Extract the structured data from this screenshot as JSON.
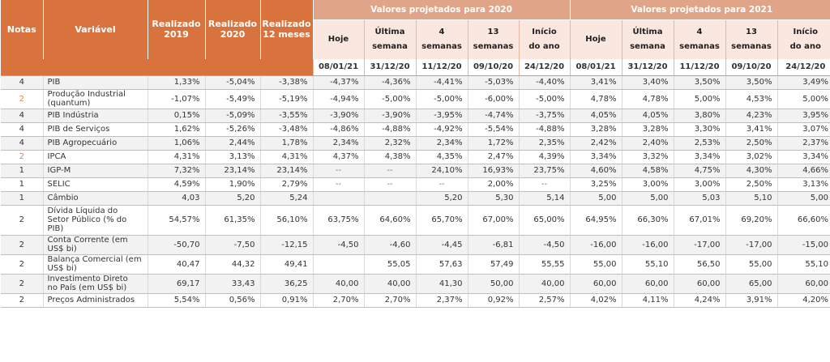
{
  "header": {
    "notas": "Notas",
    "variavel": "Variável",
    "realizado_2019": [
      "Realizado",
      "2019"
    ],
    "realizado_2020": [
      "Realizado",
      "2020"
    ],
    "realizado_12m": [
      "Realizado",
      "12 meses"
    ],
    "proj_2020": "Valores projetados para 2020",
    "proj_2021": "Valores projetados para 2021",
    "sub": [
      [
        "Hoje"
      ],
      [
        "Última",
        "semana"
      ],
      [
        "4",
        "semanas"
      ],
      [
        "13",
        "semanas"
      ],
      [
        "Início",
        "do ano"
      ]
    ],
    "dates_2020": [
      "08/01/21",
      "31/12/20",
      "11/12/20",
      "09/10/20",
      "24/12/20"
    ],
    "dates_2021": [
      "08/01/21",
      "31/12/20",
      "11/12/20",
      "09/10/20",
      "24/12/20"
    ]
  },
  "rows": [
    {
      "nota": "4",
      "hl": false,
      "var": [
        "PIB"
      ],
      "r2019": "1,33%",
      "r2020": "-5,04%",
      "r12": "-3,38%",
      "p2020": [
        "-4,37%",
        "-4,36%",
        "-4,41%",
        "-5,03%",
        "-4,40%"
      ],
      "p2021": [
        "3,41%",
        "3,40%",
        "3,50%",
        "3,50%",
        "3,49%"
      ]
    },
    {
      "nota": "2",
      "hl": true,
      "var": [
        "Produção Industrial",
        "(quantum)"
      ],
      "r2019": "-1,07%",
      "r2020": "-5,49%",
      "r12": "-5,19%",
      "p2020": [
        "-4,94%",
        "-5,00%",
        "-5,00%",
        "-6,00%",
        "-5,00%"
      ],
      "p2021": [
        "4,78%",
        "4,78%",
        "5,00%",
        "4,53%",
        "5,00%"
      ]
    },
    {
      "nota": "4",
      "hl": false,
      "var": [
        "PIB Indústria"
      ],
      "r2019": "0,15%",
      "r2020": "-5,09%",
      "r12": "-3,55%",
      "p2020": [
        "-3,90%",
        "-3,90%",
        "-3,95%",
        "-4,74%",
        "-3,75%"
      ],
      "p2021": [
        "4,05%",
        "4,05%",
        "3,80%",
        "4,23%",
        "3,95%"
      ]
    },
    {
      "nota": "4",
      "hl": false,
      "var": [
        "PIB de Serviços"
      ],
      "r2019": "1,62%",
      "r2020": "-5,26%",
      "r12": "-3,48%",
      "p2020": [
        "-4,86%",
        "-4,88%",
        "-4,92%",
        "-5,54%",
        "-4,88%"
      ],
      "p2021": [
        "3,28%",
        "3,28%",
        "3,30%",
        "3,41%",
        "3,07%"
      ]
    },
    {
      "nota": "4",
      "hl": false,
      "var": [
        "PIB Agropecuário"
      ],
      "r2019": "1,06%",
      "r2020": "2,44%",
      "r12": "1,78%",
      "p2020": [
        "2,34%",
        "2,32%",
        "2,34%",
        "1,72%",
        "2,35%"
      ],
      "p2021": [
        "2,42%",
        "2,40%",
        "2,53%",
        "2,50%",
        "2,37%"
      ]
    },
    {
      "nota": "2",
      "hl": true,
      "var": [
        "IPCA"
      ],
      "r2019": "4,31%",
      "r2020": "3,13%",
      "r12": "4,31%",
      "p2020": [
        "4,37%",
        "4,38%",
        "4,35%",
        "2,47%",
        "4,39%"
      ],
      "p2021": [
        "3,34%",
        "3,32%",
        "3,34%",
        "3,02%",
        "3,34%"
      ]
    },
    {
      "nota": "1",
      "hl": false,
      "var": [
        "IGP-M"
      ],
      "r2019": "7,32%",
      "r2020": "23,14%",
      "r12": "23,14%",
      "p2020": [
        "--",
        "--",
        "24,10%",
        "16,93%",
        "23,75%"
      ],
      "p2021": [
        "4,60%",
        "4,58%",
        "4,75%",
        "4,30%",
        "4,66%"
      ]
    },
    {
      "nota": "1",
      "hl": false,
      "var": [
        "SELIC"
      ],
      "r2019": "4,59%",
      "r2020": "1,90%",
      "r12": "2,79%",
      "p2020": [
        "--",
        "--",
        "--",
        "2,00%",
        "--"
      ],
      "p2021": [
        "3,25%",
        "3,00%",
        "3,00%",
        "2,50%",
        "3,13%"
      ]
    },
    {
      "nota": "1",
      "hl": false,
      "var": [
        "Câmbio"
      ],
      "r2019": "4,03",
      "r2020": "5,20",
      "r12": "5,24",
      "p2020": [
        "",
        "",
        "5,20",
        "5,30",
        "5,14"
      ],
      "p2021": [
        "5,00",
        "5,00",
        "5,03",
        "5,10",
        "5,00"
      ]
    },
    {
      "nota": "2",
      "hl": false,
      "var": [
        "Dívida Líquida do",
        "Setor Público (% do",
        "PIB)"
      ],
      "r2019": "54,57%",
      "r2020": "61,35%",
      "r12": "56,10%",
      "p2020": [
        "63,75%",
        "64,60%",
        "65,70%",
        "67,00%",
        "65,00%"
      ],
      "p2021": [
        "64,95%",
        "66,30%",
        "67,01%",
        "69,20%",
        "66,60%"
      ]
    },
    {
      "nota": "2",
      "hl": false,
      "var": [
        "Conta Corrente (em",
        "US$ bi)"
      ],
      "r2019": "-50,70",
      "r2020": "-7,50",
      "r12": "-12,15",
      "p2020": [
        "-4,50",
        "-4,60",
        "-4,45",
        "-6,81",
        "-4,50"
      ],
      "p2021": [
        "-16,00",
        "-16,00",
        "-17,00",
        "-17,00",
        "-15,00"
      ]
    },
    {
      "nota": "2",
      "hl": false,
      "var": [
        "Balança Comercial (em",
        "US$ bi)"
      ],
      "r2019": "40,47",
      "r2020": "44,32",
      "r12": "49,41",
      "p2020": [
        "",
        "55,05",
        "57,63",
        "57,49",
        "55,55"
      ],
      "p2021": [
        "55,00",
        "55,10",
        "56,50",
        "55,00",
        "55,10"
      ]
    },
    {
      "nota": "2",
      "hl": false,
      "var": [
        "Investimento Direto",
        "no País (em US$ bi)"
      ],
      "r2019": "69,17",
      "r2020": "33,43",
      "r12": "36,25",
      "p2020": [
        "40,00",
        "40,00",
        "41,30",
        "50,00",
        "40,00"
      ],
      "p2021": [
        "60,00",
        "60,00",
        "60,00",
        "65,00",
        "60,00"
      ]
    },
    {
      "nota": "2",
      "hl": false,
      "var": [
        "Preços Administrados"
      ],
      "r2019": "5,54%",
      "r2020": "0,56%",
      "r12": "0,91%",
      "p2020": [
        "2,70%",
        "2,70%",
        "2,37%",
        "0,92%",
        "2,57%"
      ],
      "p2021": [
        "4,02%",
        "4,11%",
        "4,24%",
        "3,91%",
        "4,20%"
      ]
    }
  ]
}
